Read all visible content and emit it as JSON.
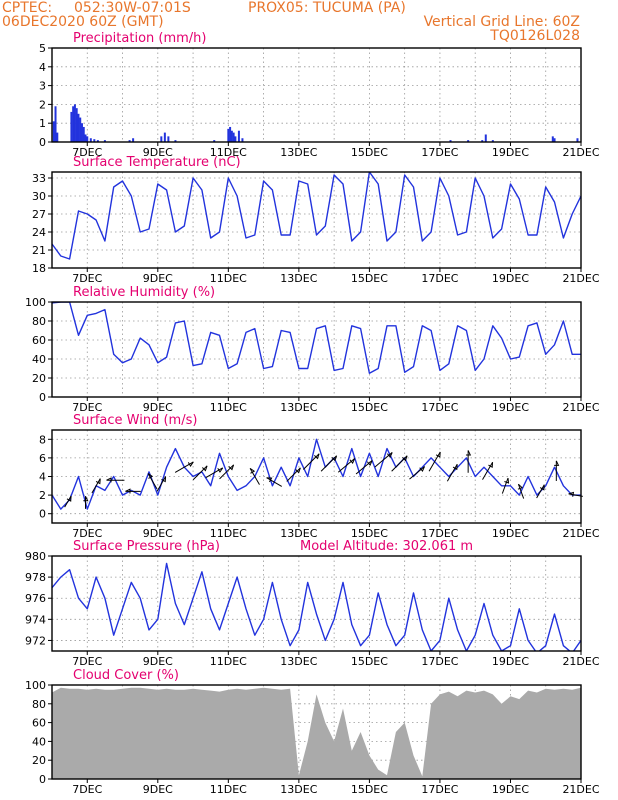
{
  "header": {
    "source": "CPTEC:",
    "coords": "052:30W-07:01S",
    "location": "PROX05: TUCUMA (PA)",
    "run": "06DEC2020 60Z (GMT)",
    "grid_note": "Vertical Grid Line: 60Z",
    "model_code": "TQ0126L028"
  },
  "x_ticks": [
    "7DEC",
    "9DEC",
    "11DEC",
    "13DEC",
    "15DEC",
    "17DEC",
    "19DEC",
    "21DEC"
  ],
  "colors": {
    "header": "#e8762c",
    "title": "#e4006f",
    "line": "#2233dd",
    "cloud": "#aaaaaa",
    "arrow": "#000000"
  },
  "chart_data": [
    {
      "id": "precip",
      "type": "bar",
      "title": "Precipitation (mm/h)",
      "ylim": [
        0,
        5
      ],
      "yticks": [
        "0",
        "1",
        "2",
        "3",
        "4",
        "5"
      ],
      "x_days": [
        6.05,
        6.1,
        6.15,
        6.55,
        6.6,
        6.65,
        6.7,
        6.75,
        6.8,
        6.85,
        6.9,
        6.95,
        7.0,
        7.1,
        7.2,
        7.3,
        7.5,
        8.2,
        8.3,
        9.1,
        9.2,
        9.3,
        9.5,
        10.6,
        11.0,
        11.05,
        11.1,
        11.15,
        11.2,
        11.3,
        11.4,
        17.3,
        17.8,
        18.2,
        18.3,
        18.5,
        20.2,
        20.25,
        20.9
      ],
      "values": [
        1.1,
        1.9,
        0.5,
        1.6,
        1.9,
        2.0,
        1.8,
        1.5,
        1.3,
        1.0,
        0.8,
        0.4,
        0.3,
        0.2,
        0.15,
        0.1,
        0.1,
        0.1,
        0.2,
        0.3,
        0.5,
        0.3,
        0.1,
        0.1,
        0.7,
        0.8,
        0.6,
        0.5,
        0.3,
        0.6,
        0.2,
        0.1,
        0.1,
        0.1,
        0.4,
        0.1,
        0.3,
        0.2,
        0.2
      ]
    },
    {
      "id": "temp",
      "type": "line",
      "title": "Surface Temperature (nC)",
      "ylim": [
        18,
        34
      ],
      "yticks": [
        "18",
        "21",
        "24",
        "27",
        "30",
        "33"
      ],
      "x_days": [
        6.0,
        6.25,
        6.5,
        6.75,
        7.0,
        7.25,
        7.5,
        7.75,
        8.0,
        8.25,
        8.5,
        8.75,
        9.0,
        9.25,
        9.5,
        9.75,
        10.0,
        10.25,
        10.5,
        10.75,
        11.0,
        11.25,
        11.5,
        11.75,
        12.0,
        12.25,
        12.5,
        12.75,
        13.0,
        13.25,
        13.5,
        13.75,
        14.0,
        14.25,
        14.5,
        14.75,
        15.0,
        15.25,
        15.5,
        15.75,
        16.0,
        16.25,
        16.5,
        16.75,
        17.0,
        17.25,
        17.5,
        17.75,
        18.0,
        18.25,
        18.5,
        18.75,
        19.0,
        19.25,
        19.5,
        19.75,
        20.0,
        20.25,
        20.5,
        20.75,
        21.0
      ],
      "values": [
        22,
        20,
        19.5,
        27.5,
        27,
        26,
        22.5,
        31.5,
        32.5,
        30,
        24,
        24.5,
        32,
        31,
        24,
        25,
        33,
        31,
        23,
        24,
        33,
        30,
        23,
        23.5,
        32.5,
        31,
        23.5,
        23.5,
        32.5,
        32,
        23.5,
        25,
        33.5,
        32,
        22.5,
        24,
        34,
        32,
        22.5,
        24,
        33.5,
        31.5,
        22.5,
        24,
        33,
        30,
        23.5,
        24,
        33,
        30,
        23,
        24.5,
        32,
        29.5,
        23.5,
        23.5,
        31.5,
        29,
        23,
        27,
        30
      ]
    },
    {
      "id": "rh",
      "type": "line",
      "title": "Relative Humidity (%)",
      "ylim": [
        0,
        100
      ],
      "yticks": [
        "0",
        "20",
        "40",
        "60",
        "80",
        "100"
      ],
      "x_days": [
        6.0,
        6.25,
        6.5,
        6.75,
        7.0,
        7.25,
        7.5,
        7.75,
        8.0,
        8.25,
        8.5,
        8.75,
        9.0,
        9.25,
        9.5,
        9.75,
        10.0,
        10.25,
        10.5,
        10.75,
        11.0,
        11.25,
        11.5,
        11.75,
        12.0,
        12.25,
        12.5,
        12.75,
        13.0,
        13.25,
        13.5,
        13.75,
        14.0,
        14.25,
        14.5,
        14.75,
        15.0,
        15.25,
        15.5,
        15.75,
        16.0,
        16.25,
        16.5,
        16.75,
        17.0,
        17.25,
        17.5,
        17.75,
        18.0,
        18.25,
        18.5,
        18.75,
        19.0,
        19.25,
        19.5,
        19.75,
        20.0,
        20.25,
        20.5,
        20.75,
        21.0
      ],
      "values": [
        99,
        100,
        100,
        65,
        86,
        88,
        92,
        45,
        36,
        40,
        62,
        55,
        36,
        42,
        78,
        80,
        33,
        35,
        68,
        65,
        30,
        35,
        68,
        72,
        30,
        32,
        70,
        68,
        30,
        30,
        72,
        75,
        28,
        30,
        75,
        72,
        25,
        30,
        75,
        75,
        26,
        32,
        75,
        70,
        28,
        35,
        75,
        70,
        28,
        40,
        75,
        62,
        40,
        42,
        75,
        78,
        45,
        55,
        80,
        45,
        45
      ]
    },
    {
      "id": "wind",
      "type": "line",
      "title": "Surface Wind (m/s)",
      "ylim": [
        -1,
        9
      ],
      "yticks": [
        "0",
        "2",
        "4",
        "6",
        "8"
      ],
      "x_days": [
        6.0,
        6.25,
        6.5,
        6.75,
        7.0,
        7.25,
        7.5,
        7.75,
        8.0,
        8.25,
        8.5,
        8.75,
        9.0,
        9.25,
        9.5,
        9.75,
        10.0,
        10.25,
        10.5,
        10.75,
        11.0,
        11.25,
        11.5,
        11.75,
        12.0,
        12.25,
        12.5,
        12.75,
        13.0,
        13.25,
        13.5,
        13.75,
        14.0,
        14.25,
        14.5,
        14.75,
        15.0,
        15.25,
        15.5,
        15.75,
        16.0,
        16.25,
        16.5,
        16.75,
        17.0,
        17.25,
        17.5,
        17.75,
        18.0,
        18.25,
        18.5,
        18.75,
        19.0,
        19.25,
        19.5,
        19.75,
        20.0,
        20.25,
        20.5,
        20.75,
        21.0
      ],
      "values": [
        2,
        0.5,
        1.5,
        4,
        0.5,
        3,
        2.5,
        4,
        2,
        2.5,
        2,
        4.5,
        2,
        5,
        7,
        5,
        4,
        4.5,
        3,
        6.5,
        4,
        2.5,
        3,
        4,
        6,
        3,
        5,
        3,
        6,
        4,
        8,
        5,
        6,
        4,
        7,
        4,
        6.5,
        4,
        7,
        5,
        6,
        4,
        5,
        6,
        5,
        4,
        5,
        6,
        4,
        5,
        4,
        3,
        3,
        2,
        4,
        2,
        3,
        5,
        3,
        2,
        2
      ],
      "arrows": [
        {
          "x": 6.45,
          "dir": 30
        },
        {
          "x": 6.95,
          "dir": 0
        },
        {
          "x": 7.25,
          "dir": 30
        },
        {
          "x": 7.8,
          "dir": 270
        },
        {
          "x": 8.3,
          "dir": 270
        },
        {
          "x": 8.85,
          "dir": 330
        },
        {
          "x": 9.1,
          "dir": 30
        },
        {
          "x": 9.75,
          "dir": 60
        },
        {
          "x": 10.2,
          "dir": 45
        },
        {
          "x": 10.6,
          "dir": 60
        },
        {
          "x": 10.95,
          "dir": 45
        },
        {
          "x": 11.75,
          "dir": 330
        },
        {
          "x": 12.3,
          "dir": 300
        },
        {
          "x": 12.85,
          "dir": 45
        },
        {
          "x": 13.35,
          "dir": 45
        },
        {
          "x": 13.85,
          "dir": 45
        },
        {
          "x": 14.35,
          "dir": 50
        },
        {
          "x": 14.85,
          "dir": 50
        },
        {
          "x": 15.4,
          "dir": 50
        },
        {
          "x": 15.85,
          "dir": 45
        },
        {
          "x": 16.35,
          "dir": 50
        },
        {
          "x": 16.85,
          "dir": 30
        },
        {
          "x": 17.35,
          "dir": 30
        },
        {
          "x": 17.8,
          "dir": 0
        },
        {
          "x": 18.35,
          "dir": 30
        },
        {
          "x": 18.85,
          "dir": 20
        },
        {
          "x": 19.3,
          "dir": 340
        },
        {
          "x": 19.85,
          "dir": 30
        },
        {
          "x": 20.3,
          "dir": 0
        },
        {
          "x": 20.85,
          "dir": 280
        }
      ]
    },
    {
      "id": "pressure",
      "type": "line",
      "title": "Surface Pressure (hPa)",
      "annotation": "Model Altitude: 302.061 m",
      "ylim": [
        971,
        980
      ],
      "yticks": [
        "972",
        "974",
        "976",
        "978",
        "980"
      ],
      "x_days": [
        6.0,
        6.25,
        6.5,
        6.75,
        7.0,
        7.25,
        7.5,
        7.75,
        8.0,
        8.25,
        8.5,
        8.75,
        9.0,
        9.25,
        9.5,
        9.75,
        10.0,
        10.25,
        10.5,
        10.75,
        11.0,
        11.25,
        11.5,
        11.75,
        12.0,
        12.25,
        12.5,
        12.75,
        13.0,
        13.25,
        13.5,
        13.75,
        14.0,
        14.25,
        14.5,
        14.75,
        15.0,
        15.25,
        15.5,
        15.75,
        16.0,
        16.25,
        16.5,
        16.75,
        17.0,
        17.25,
        17.5,
        17.75,
        18.0,
        18.25,
        18.5,
        18.75,
        19.0,
        19.25,
        19.5,
        19.75,
        20.0,
        20.25,
        20.5,
        20.75,
        21.0
      ],
      "values": [
        977,
        978,
        978.7,
        976,
        975,
        978,
        976,
        972.5,
        975,
        977.5,
        976,
        973,
        974,
        979.3,
        975.5,
        973.5,
        976,
        978.5,
        975,
        973,
        975.5,
        978,
        975,
        972.5,
        974,
        977.5,
        974,
        971.5,
        973,
        977.5,
        974.5,
        972,
        974,
        977.5,
        973.5,
        971.5,
        972.5,
        976.5,
        973.5,
        971.5,
        972.5,
        976.5,
        973,
        971,
        972,
        976,
        973,
        971,
        972.5,
        975.5,
        972.5,
        971,
        971.5,
        975,
        972,
        970.8,
        971.5,
        974.5,
        971.5,
        970.8,
        972
      ]
    },
    {
      "id": "cloud",
      "type": "area",
      "title": "Cloud Cover (%)",
      "ylim": [
        0,
        100
      ],
      "yticks": [
        "0",
        "20",
        "40",
        "60",
        "80",
        "100"
      ],
      "x_days": [
        6.0,
        6.25,
        6.5,
        6.75,
        7.0,
        7.25,
        7.5,
        7.75,
        8.0,
        8.25,
        8.5,
        8.75,
        9.0,
        9.25,
        9.5,
        9.75,
        10.0,
        10.25,
        10.5,
        10.75,
        11.0,
        11.25,
        11.5,
        11.75,
        12.0,
        12.25,
        12.5,
        12.75,
        13.0,
        13.25,
        13.5,
        13.75,
        14.0,
        14.25,
        14.5,
        14.75,
        15.0,
        15.25,
        15.5,
        15.75,
        16.0,
        16.25,
        16.5,
        16.75,
        17.0,
        17.25,
        17.5,
        17.75,
        18.0,
        18.25,
        18.5,
        18.75,
        19.0,
        19.25,
        19.5,
        19.75,
        20.0,
        20.25,
        20.5,
        20.75,
        21.0
      ],
      "values": [
        92,
        97,
        96,
        96,
        95,
        96,
        95,
        95,
        96,
        97,
        97,
        96,
        95,
        96,
        95,
        95,
        96,
        95,
        94,
        93,
        95,
        96,
        95,
        96,
        97,
        96,
        95,
        96,
        4,
        40,
        90,
        60,
        40,
        75,
        30,
        50,
        25,
        10,
        4,
        50,
        60,
        25,
        3,
        80,
        90,
        93,
        88,
        94,
        92,
        94,
        90,
        80,
        88,
        85,
        94,
        92,
        96,
        95,
        96,
        95,
        97
      ]
    }
  ]
}
